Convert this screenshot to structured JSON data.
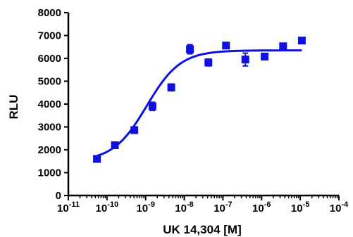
{
  "chart_data": {
    "type": "scatter",
    "xlabel": "UK 14,304 [M]",
    "ylabel": "RLU",
    "x_scale": "log10",
    "xlim": [
      1e-11,
      0.0001
    ],
    "ylim": [
      0,
      8000
    ],
    "x_ticks": [
      {
        "base": "10",
        "exp": "-11"
      },
      {
        "base": "10",
        "exp": "-10"
      },
      {
        "base": "10",
        "exp": "-9"
      },
      {
        "base": "10",
        "exp": "-8"
      },
      {
        "base": "10",
        "exp": "-7"
      },
      {
        "base": "10",
        "exp": "-6"
      },
      {
        "base": "10",
        "exp": "-5"
      },
      {
        "base": "10",
        "exp": "-4"
      }
    ],
    "y_ticks": [
      "0",
      "1000",
      "2000",
      "3000",
      "4000",
      "5000",
      "6000",
      "7000",
      "8000"
    ],
    "colors": {
      "series": "#1010e0",
      "axis": "#000000"
    },
    "series": [
      {
        "marker": "square",
        "points": [
          {
            "x": 5.5e-11,
            "y": 1600,
            "err": 60
          },
          {
            "x": 1.6e-10,
            "y": 2200,
            "err": 60
          },
          {
            "x": 5.1e-10,
            "y": 2860,
            "err": 130
          },
          {
            "x": 1.5e-09,
            "y": 3900,
            "err": 180
          },
          {
            "x": 4.6e-09,
            "y": 4730,
            "err": 150
          },
          {
            "x": 1.4e-08,
            "y": 6400,
            "err": 200
          },
          {
            "x": 4.2e-08,
            "y": 5820,
            "err": 150
          },
          {
            "x": 1.2e-07,
            "y": 6560,
            "err": 80
          },
          {
            "x": 3.8e-07,
            "y": 5950,
            "err": 280
          },
          {
            "x": 1.2e-06,
            "y": 6080,
            "err": 60
          },
          {
            "x": 3.6e-06,
            "y": 6530,
            "err": 100
          },
          {
            "x": 1.1e-05,
            "y": 6780,
            "err": 60
          }
        ]
      }
    ],
    "fit_curve": {
      "type": "sigmoidal dose-response",
      "bottom": 1500,
      "top": 6350,
      "log_ec50": -8.97,
      "hill_slope": 1.0,
      "x_range": [
        5.5e-11,
        1.1e-05
      ]
    }
  }
}
